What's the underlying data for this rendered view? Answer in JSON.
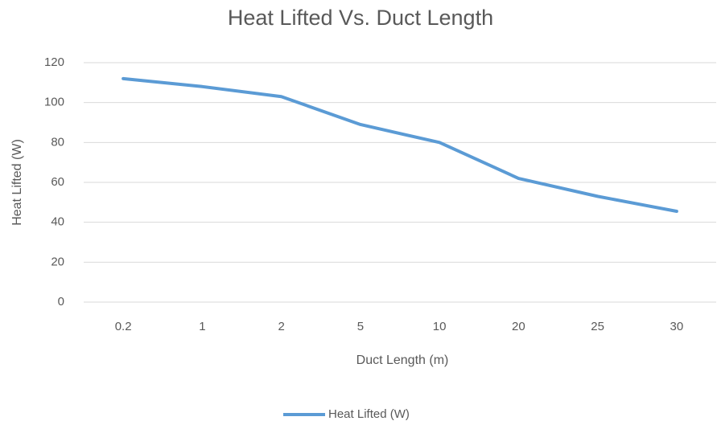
{
  "chart_data": {
    "type": "line",
    "title": "Heat Lifted Vs. Duct Length",
    "x_label": "Duct Length  (m)",
    "y_label": "Heat Lifted (W)",
    "categories": [
      "0.2",
      "1",
      "2",
      "5",
      "10",
      "20",
      "25",
      "30"
    ],
    "series": [
      {
        "name": "Heat Lifted (W)",
        "color": "#5b9bd5",
        "values": [
          112,
          108,
          103,
          89,
          80,
          62,
          53,
          45.5
        ]
      }
    ],
    "ylim": [
      0,
      120
    ],
    "yticks": [
      0,
      20,
      40,
      60,
      80,
      100,
      120
    ],
    "grid": true,
    "legend": "bottom"
  }
}
